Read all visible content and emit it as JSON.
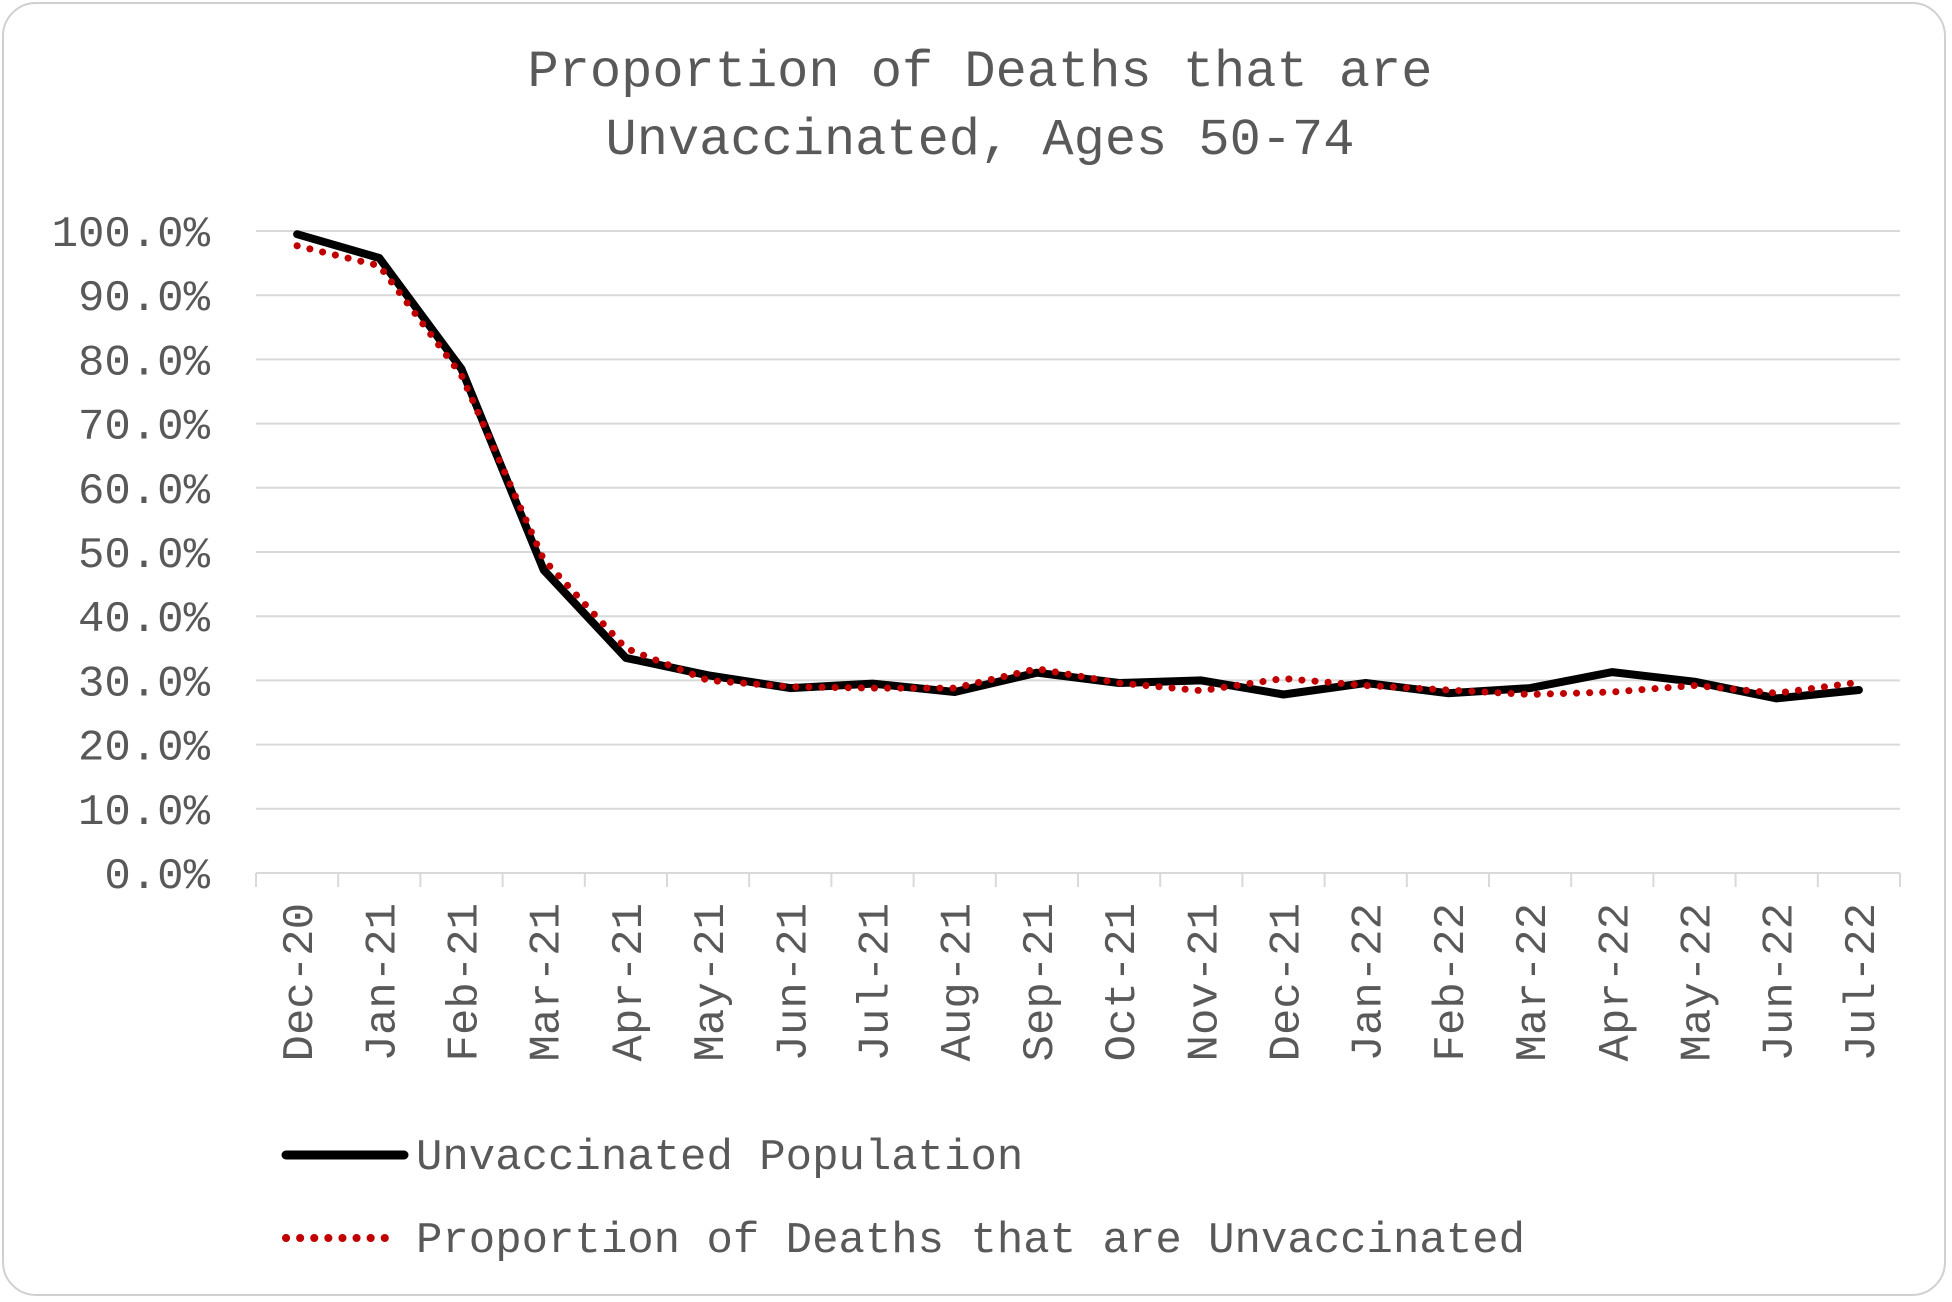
{
  "chart_data": {
    "type": "line",
    "title_lines": [
      "Proportion of Deaths that are",
      "Unvaccinated, Ages 50-74"
    ],
    "xlabel": "",
    "ylabel": "",
    "ylim": [
      0,
      100
    ],
    "y_ticks": [
      0,
      10,
      20,
      30,
      40,
      50,
      60,
      70,
      80,
      90,
      100
    ],
    "y_tick_labels": [
      "0.0%",
      "10.0%",
      "20.0%",
      "30.0%",
      "40.0%",
      "50.0%",
      "60.0%",
      "70.0%",
      "80.0%",
      "90.0%",
      "100.0%"
    ],
    "categories": [
      "Dec-20",
      "Jan-21",
      "Feb-21",
      "Mar-21",
      "Apr-21",
      "May-21",
      "Jun-21",
      "Jul-21",
      "Aug-21",
      "Sep-21",
      "Oct-21",
      "Nov-21",
      "Dec-21",
      "Jan-22",
      "Feb-22",
      "Mar-22",
      "Apr-22",
      "May-22",
      "Jun-22",
      "Jul-22"
    ],
    "grid": true,
    "legend_position": "bottom",
    "series": [
      {
        "name": "Unvaccinated Population",
        "color": "#000000",
        "style": "solid",
        "values": [
          99.5,
          95.8,
          78.5,
          47.2,
          33.5,
          30.8,
          28.8,
          29.5,
          28.2,
          31.2,
          29.6,
          30.0,
          27.8,
          29.6,
          28.0,
          28.8,
          31.3,
          29.8,
          27.2,
          28.5
        ]
      },
      {
        "name": "Proportion of Deaths that are Unvaccinated",
        "color": "#c00000",
        "style": "dotted",
        "values": [
          97.7,
          94.6,
          77.5,
          48.8,
          35.0,
          30.0,
          29.0,
          28.8,
          28.8,
          31.8,
          29.6,
          28.4,
          30.3,
          29.2,
          28.5,
          27.8,
          28.2,
          29.2,
          28.0,
          29.7
        ]
      }
    ]
  }
}
